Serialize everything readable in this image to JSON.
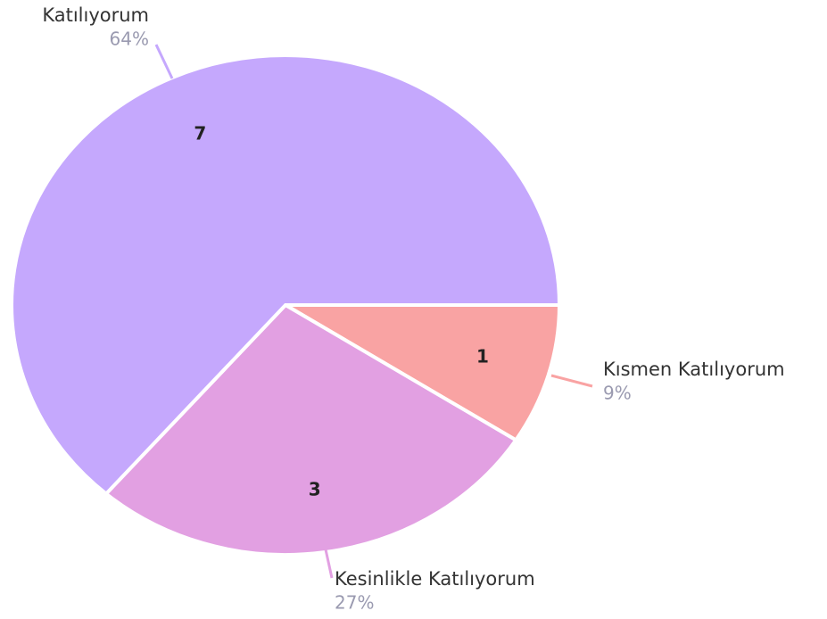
{
  "chart_data": {
    "type": "pie",
    "categories": [
      "Kısmen Katılıyorum",
      "Kesinlikle Katılıyorum",
      "Katılıyorum"
    ],
    "values": [
      1,
      3,
      7
    ],
    "percent_labels": [
      "9%",
      "27%",
      "64%"
    ],
    "colors": [
      "#f9a3a3",
      "#e2a0e2",
      "#c5a8fd"
    ]
  }
}
